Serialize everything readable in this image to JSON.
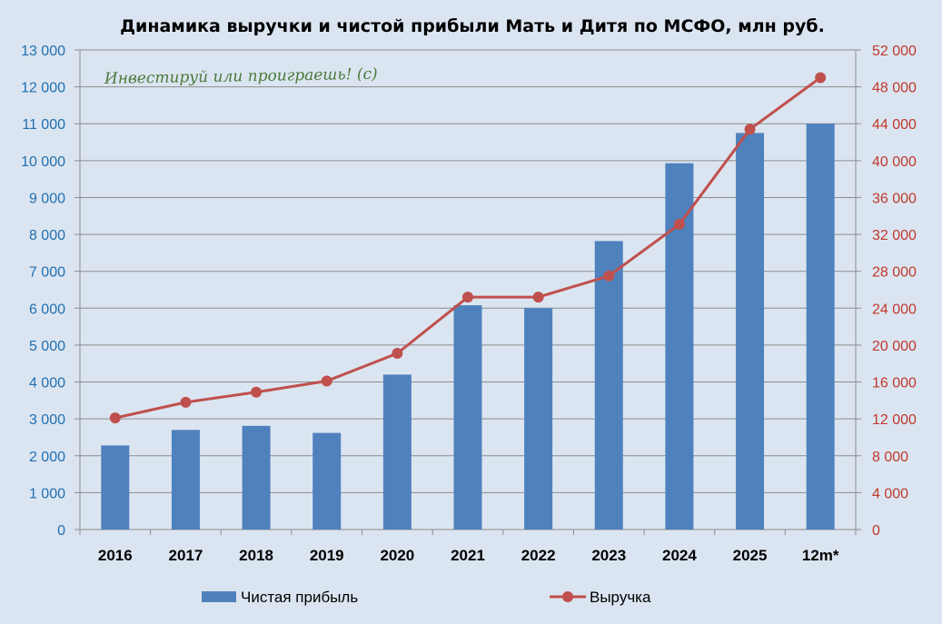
{
  "chart_data": {
    "type": "bar+line",
    "title": "Динамика выручки и чистой прибыли Мать и Дитя по МСФО, млн руб.",
    "watermark": "Инвестируй или проиграешь! (с)",
    "categories": [
      "2016",
      "2017",
      "2018",
      "2019",
      "2020",
      "2021",
      "2022",
      "2023",
      "2024",
      "2025",
      "12m*"
    ],
    "series": [
      {
        "name": "Чистая прибыль",
        "type": "bar",
        "axis": "left",
        "color": "#4f81bd",
        "values": [
          2280,
          2700,
          2810,
          2620,
          4200,
          6080,
          6000,
          7820,
          9930,
          10750,
          11000
        ]
      },
      {
        "name": "Выручка",
        "type": "line",
        "axis": "right",
        "color": "#c0504d",
        "values": [
          12100,
          13800,
          14900,
          16100,
          19100,
          25200,
          25200,
          27500,
          33100,
          43400,
          49000
        ]
      }
    ],
    "y_left": {
      "min": 0,
      "max": 13000,
      "step": 1000,
      "tick_labels": [
        "0",
        "1 000",
        "2 000",
        "3 000",
        "4 000",
        "5 000",
        "6 000",
        "7 000",
        "8 000",
        "9 000",
        "10 000",
        "11 000",
        "12 000",
        "13 000"
      ]
    },
    "y_right": {
      "min": 0,
      "max": 52000,
      "step": 4000,
      "tick_labels": [
        "0",
        "4 000",
        "8 000",
        "12 000",
        "16 000",
        "20 000",
        "24 000",
        "28 000",
        "32 000",
        "36 000",
        "40 000",
        "44 000",
        "48 000",
        "52 000"
      ]
    },
    "grid": true,
    "legend_position": "bottom",
    "colors": {
      "bar": "#4f81bd",
      "line": "#c0504d",
      "left_axis": "#1f6fb2",
      "right_axis": "#c0392b",
      "background": "#dbe5f1"
    }
  }
}
